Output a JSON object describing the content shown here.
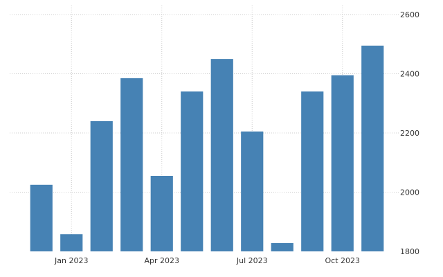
{
  "chart_data": {
    "type": "bar",
    "title": "",
    "xlabel": "",
    "ylabel": "",
    "categories": [
      "Dec 2022",
      "Jan 2023",
      "Feb 2023",
      "Mar 2023",
      "Apr 2023",
      "May 2023",
      "Jun 2023",
      "Jul 2023",
      "Aug 2023",
      "Sep 2023",
      "Oct 2023",
      "Nov 2023"
    ],
    "values": [
      2025,
      1858,
      2240,
      2385,
      2055,
      2340,
      2450,
      2205,
      1828,
      2340,
      2395,
      2495
    ],
    "ylim": [
      1800,
      2600
    ],
    "y_ticks": [
      1800,
      2000,
      2200,
      2400,
      2600
    ],
    "x_tick_labels": [
      {
        "label": "Jan 2023",
        "category": "Jan 2023"
      },
      {
        "label": "Apr 2023",
        "category": "Apr 2023"
      },
      {
        "label": "Jul 2023",
        "category": "Jul 2023"
      },
      {
        "label": "Oct 2023",
        "category": "Oct 2023"
      }
    ],
    "y_axis_side": "right",
    "grid": true,
    "bar_color": "#4682b4"
  }
}
